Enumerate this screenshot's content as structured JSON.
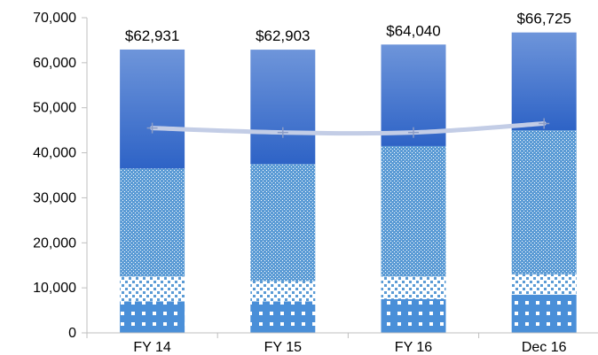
{
  "chart_data": {
    "type": "bar",
    "stacked": true,
    "categories": [
      "FY 14",
      "FY 15",
      "FY 16",
      "Dec 16"
    ],
    "ylim": [
      0,
      70000
    ],
    "yticks": [
      0,
      10000,
      20000,
      30000,
      40000,
      50000,
      60000,
      70000
    ],
    "ytick_labels": [
      "0",
      "10,000",
      "20,000",
      "30,000",
      "40,000",
      "50,000",
      "60,000",
      "70,000"
    ],
    "grid": false,
    "legend": "none",
    "series": [
      {
        "type": "bar",
        "pattern": "white-squares-on-blue",
        "color": "#4A8FD8",
        "values": [
          7000,
          7000,
          7500,
          8500
        ]
      },
      {
        "type": "bar",
        "pattern": "light-dotted",
        "color": "#5B9BD5",
        "values": [
          5500,
          4500,
          5000,
          4500
        ]
      },
      {
        "type": "bar",
        "pattern": "dense-dotted",
        "color": "#5B9BD5",
        "values": [
          24000,
          26000,
          29000,
          32000
        ]
      },
      {
        "type": "bar",
        "pattern": "solid-gradient",
        "color": "#3A6FD0",
        "values": [
          26431,
          25403,
          22540,
          21725
        ]
      },
      {
        "type": "line",
        "marker": "plus",
        "color": "#C3CDE6",
        "values": [
          45500,
          44500,
          44500,
          46500
        ]
      }
    ],
    "total_labels": [
      "$62,931",
      "$62,903",
      "$64,040",
      "$66,725"
    ]
  }
}
